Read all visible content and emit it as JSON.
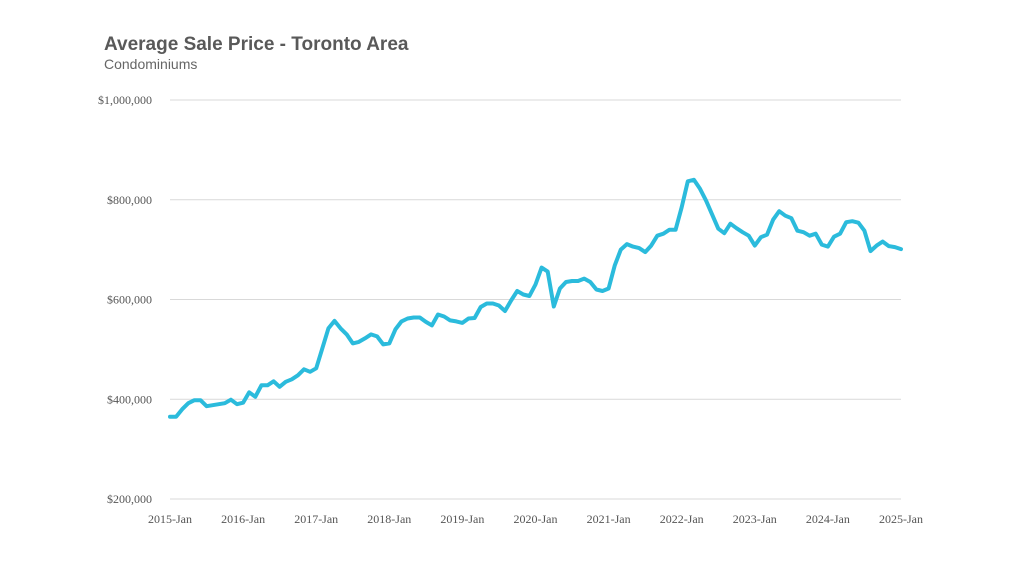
{
  "chart_data": {
    "type": "line",
    "title": "Average Sale Price - Toronto Area",
    "subtitle": "Condominiums",
    "xlabel": "",
    "ylabel": "",
    "ylim": [
      200000,
      1000000
    ],
    "y_ticks": [
      200000,
      400000,
      600000,
      800000,
      1000000
    ],
    "y_tick_labels": [
      "$200,000",
      "$400,000",
      "$600,000",
      "$800,000",
      "$1,000,000"
    ],
    "x_tick_labels": [
      "2015-Jan",
      "2016-Jan",
      "2017-Jan",
      "2018-Jan",
      "2019-Jan",
      "2020-Jan",
      "2021-Jan",
      "2022-Jan",
      "2023-Jan",
      "2024-Jan",
      "2025-Jan"
    ],
    "grid": true,
    "legend": "none",
    "line_color": "#2bbbdc",
    "series": [
      {
        "values": [
          365000,
          365000,
          380000,
          392000,
          398000,
          398000,
          386000,
          388000,
          390000,
          392000,
          399000,
          390000,
          393000,
          414000,
          405000,
          428000,
          428000,
          436000,
          425000,
          435000,
          440000,
          448000,
          460000,
          455000,
          462000,
          502000,
          542000,
          557000,
          542000,
          530000,
          512000,
          515000,
          522000,
          530000,
          526000,
          510000,
          512000,
          540000,
          556000,
          562000,
          564000,
          564000,
          555000,
          548000,
          570000,
          566000,
          558000,
          556000,
          553000,
          562000,
          563000,
          585000,
          592000,
          592000,
          588000,
          577000,
          598000,
          617000,
          610000,
          607000,
          630000,
          664000,
          656000,
          586000,
          622000,
          635000,
          637000,
          637000,
          642000,
          635000,
          620000,
          617000,
          622000,
          668000,
          700000,
          711000,
          706000,
          703000,
          695000,
          708000,
          728000,
          732000,
          740000,
          740000,
          785000,
          837000,
          840000,
          822000,
          798000,
          770000,
          742000,
          733000,
          752000,
          743000,
          735000,
          728000,
          708000,
          725000,
          730000,
          760000,
          777000,
          768000,
          763000,
          738000,
          735000,
          728000,
          732000,
          710000,
          706000,
          726000,
          732000,
          755000,
          757000,
          754000,
          738000,
          697000,
          708000,
          716000,
          707000,
          705000,
          701000
        ]
      }
    ]
  }
}
